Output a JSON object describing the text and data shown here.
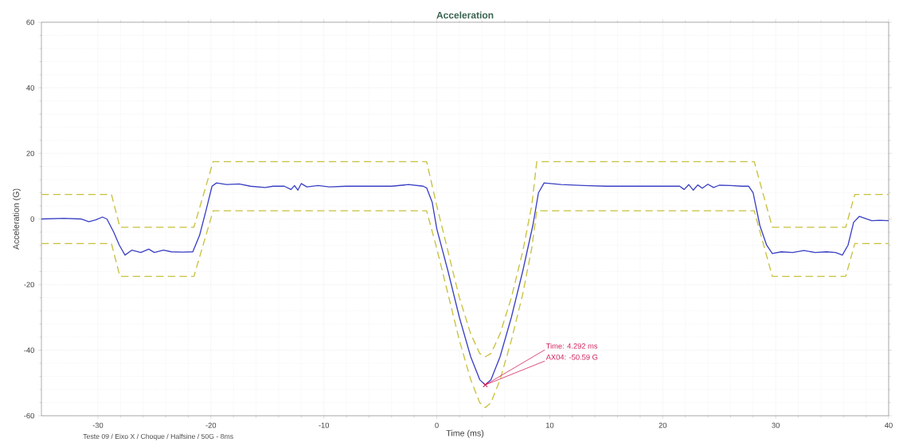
{
  "chart_data": {
    "type": "line",
    "title": "Acceleration",
    "xlabel": "Time (ms)",
    "ylabel": "Acceleration (G)",
    "xlim": [
      -35,
      40
    ],
    "ylim": [
      -60,
      60
    ],
    "xticks": [
      -30,
      -20,
      -10,
      0,
      10,
      20,
      30,
      40
    ],
    "yticks": [
      -60,
      -40,
      -20,
      0,
      20,
      40,
      60
    ],
    "grid": true,
    "marker": "none",
    "series": [
      {
        "color": "#3a40c4",
        "line_style": "solid",
        "x": [
          -35,
          -33,
          -31.5,
          -30.8,
          -30.2,
          -29.6,
          -29.2,
          -28.6,
          -28.1,
          -27.6,
          -27.0,
          -26.2,
          -25.5,
          -25.0,
          -24.2,
          -23.5,
          -22.5,
          -21.6,
          -21.0,
          -20.4,
          -19.9,
          -19.5,
          -18.6,
          -17.5,
          -16.5,
          -15.2,
          -14.5,
          -13.5,
          -12.9,
          -12.6,
          -12.3,
          -12.0,
          -11.5,
          -10.5,
          -9.5,
          -8.0,
          -6.0,
          -4.0,
          -2.5,
          -1.2,
          -0.9,
          -0.4,
          0,
          1,
          2,
          3,
          3.8,
          4.292,
          4.8,
          5.6,
          6.6,
          7.6,
          8.5,
          9.0,
          9.5,
          11,
          13,
          15,
          17,
          19,
          20.5,
          21.5,
          21.9,
          22.3,
          22.7,
          23.1,
          23.5,
          24.0,
          24.5,
          25.0,
          26,
          27,
          27.6,
          28.0,
          28.6,
          29.2,
          29.7,
          30.5,
          31.5,
          32.5,
          33.5,
          34.5,
          35.3,
          35.9,
          36.4,
          36.9,
          37.4,
          37.9,
          38.5,
          39.2,
          40
        ],
        "values": [
          0,
          0.2,
          0,
          -0.8,
          -0.3,
          0.6,
          0,
          -4,
          -8,
          -11,
          -9.5,
          -10.2,
          -9.2,
          -10.2,
          -9.5,
          -10,
          -10.1,
          -10,
          -5,
          3,
          10,
          11,
          10.5,
          10.7,
          10,
          9.6,
          10,
          10,
          9.0,
          10.2,
          8.8,
          10.8,
          9.8,
          10.2,
          9.8,
          10,
          10,
          10,
          10.5,
          10,
          9.5,
          5,
          -3,
          -16,
          -30,
          -42,
          -49,
          -50.59,
          -49,
          -42,
          -30,
          -16,
          -2,
          8,
          11,
          10.5,
          10.2,
          10,
          10,
          10,
          10,
          10,
          9.0,
          10.5,
          8.8,
          10.4,
          9.4,
          10.6,
          9.6,
          10.3,
          10.2,
          10,
          10,
          8,
          -2,
          -8,
          -10.5,
          -10,
          -10.2,
          -9.6,
          -10.2,
          -10,
          -10.2,
          -11,
          -8,
          -1,
          0.8,
          0.2,
          -0.5,
          -0.4,
          -0.5
        ]
      },
      {
        "color": "#c8c03c",
        "line_style": "dashed",
        "x": [
          -35,
          -28.8,
          -28.05,
          -21.5,
          -19.8,
          -0.9,
          0,
          1,
          2,
          3,
          3.8,
          4.3,
          4.8,
          5.6,
          6.6,
          7.6,
          8.4,
          8.85,
          28.1,
          29.7,
          36.2,
          37.0,
          40
        ],
        "values": [
          7.5,
          7.5,
          -2.5,
          -2.5,
          17.5,
          17.5,
          4,
          -10,
          -24,
          -35,
          -41,
          -42,
          -41,
          -35,
          -24,
          -10,
          4,
          17.5,
          17.5,
          -2.5,
          -2.5,
          7.5,
          7.5
        ]
      },
      {
        "color": "#c8c03c",
        "line_style": "dashed",
        "x": [
          -35,
          -28.8,
          -28.05,
          -21.5,
          -19.8,
          -0.9,
          0,
          1,
          2,
          3,
          3.8,
          4.3,
          4.8,
          5.6,
          6.6,
          7.6,
          8.4,
          8.85,
          28.1,
          29.7,
          36.2,
          37.0,
          40
        ],
        "values": [
          -7.5,
          -7.5,
          -17.5,
          -17.5,
          2.5,
          2.5,
          -9,
          -23,
          -37,
          -49,
          -56,
          -57.5,
          -56,
          -49,
          -37,
          -23,
          -9,
          2.5,
          2.5,
          -17.5,
          -17.5,
          -7.5,
          -7.5
        ]
      }
    ],
    "annotations": [
      {
        "text": "Time: 4.292 ms",
        "x": 4.292,
        "y": -50.59
      },
      {
        "text": "AX04: -50.59 G",
        "x": 4.292,
        "y": -50.59
      },
      "Teste 09 / Eixo X / Choque / Halfsine / 50G - 8ms"
    ]
  }
}
